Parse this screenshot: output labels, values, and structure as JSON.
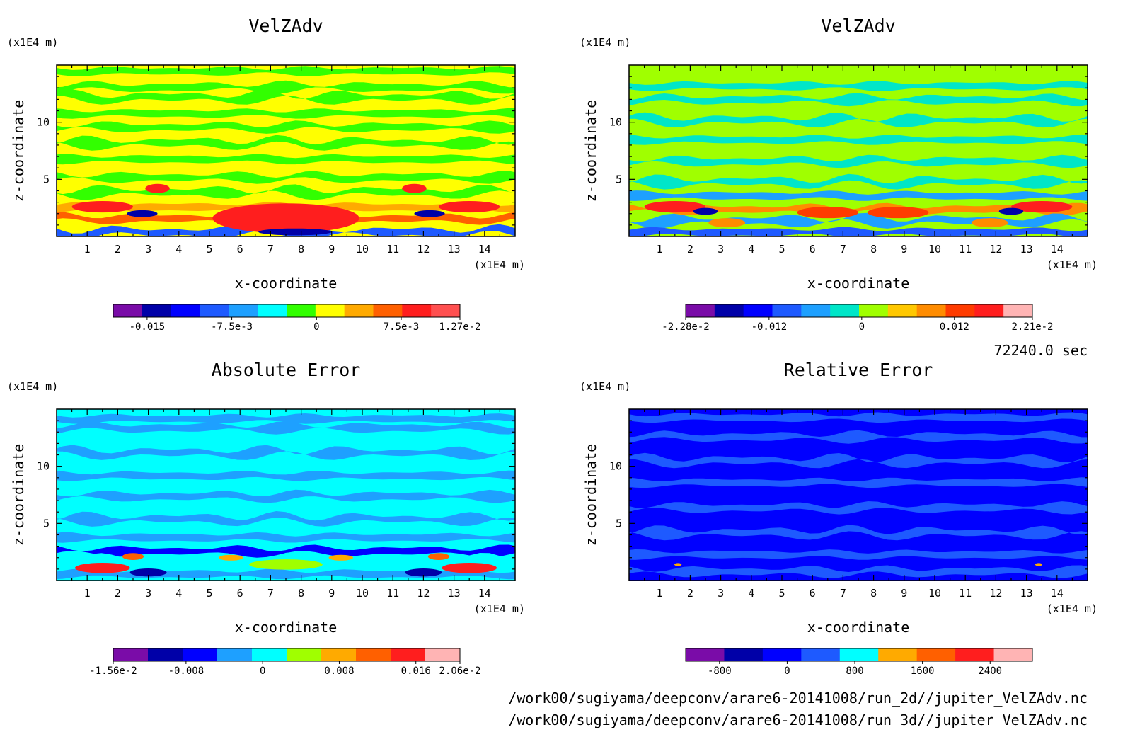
{
  "time_label": "72240.0 sec",
  "files": [
    "/work00/sugiyama/deepconv/arare6-20141008/run_2d//jupiter_VelZAdv.nc",
    "/work00/sugiyama/deepconv/arare6-20141008/run_3d//jupiter_VelZAdv.nc"
  ],
  "chart_data": [
    {
      "type": "heatmap",
      "title": "VelZAdv",
      "xlabel": "x-coordinate",
      "ylabel": "z-coordinate",
      "x_unit": "(x1E4 m)",
      "y_unit": "(x1E4 m)",
      "xlim": [
        0,
        15
      ],
      "ylim": [
        0,
        15
      ],
      "x_ticks": [
        "1",
        "2",
        "3",
        "4",
        "5",
        "6",
        "7",
        "8",
        "9",
        "10",
        "11",
        "12",
        "13",
        "14"
      ],
      "y_ticks": [
        "5",
        "10"
      ],
      "colorbar": {
        "colors": [
          "#7a0ca8",
          "#0000a8",
          "#0000ff",
          "#1e5aff",
          "#1ea0ff",
          "#00ffff",
          "#32ff00",
          "#ffff00",
          "#ffaa00",
          "#ff6000",
          "#ff1e1e",
          "#ff5050"
        ],
        "labels": [
          "-0.015",
          "-7.5e-3",
          "0",
          "7.5e-3",
          "1.27e-2"
        ],
        "range": [
          -0.018,
          0.0127
        ]
      },
      "background": "#ffff00",
      "bands": [
        {
          "z": 14.5,
          "color": "#32ff00"
        },
        {
          "z": 13.1,
          "color": "#32ff00"
        },
        {
          "z": 12.2,
          "color": "#32ff00"
        },
        {
          "z": 10.8,
          "color": "#32ff00"
        },
        {
          "z": 9.6,
          "color": "#32ff00"
        },
        {
          "z": 8.2,
          "color": "#32ff00"
        },
        {
          "z": 6.8,
          "color": "#32ff00"
        },
        {
          "z": 5.2,
          "color": "#32ff00"
        },
        {
          "z": 3.9,
          "color": "#32ff00"
        },
        {
          "z": 2.6,
          "color": "#ffaa00"
        },
        {
          "z": 1.6,
          "color": "#ff6000"
        },
        {
          "z": 0.4,
          "color": "#1e5aff"
        }
      ],
      "features": [
        {
          "x": 7.5,
          "z": 1.6,
          "rx": 2.4,
          "rz": 1.3,
          "color": "#ff1e1e"
        },
        {
          "x": 1.5,
          "z": 2.6,
          "rx": 1.0,
          "rz": 0.5,
          "color": "#ff1e1e"
        },
        {
          "x": 13.5,
          "z": 2.6,
          "rx": 1.0,
          "rz": 0.5,
          "color": "#ff1e1e"
        },
        {
          "x": 2.8,
          "z": 2.0,
          "rx": 0.5,
          "rz": 0.3,
          "color": "#0000a8"
        },
        {
          "x": 12.2,
          "z": 2.0,
          "rx": 0.5,
          "rz": 0.3,
          "color": "#0000a8"
        },
        {
          "x": 7.8,
          "z": 0.4,
          "rx": 1.2,
          "rz": 0.3,
          "color": "#0000a8"
        },
        {
          "x": 3.3,
          "z": 4.2,
          "rx": 0.4,
          "rz": 0.4,
          "color": "#ff1e1e"
        },
        {
          "x": 11.7,
          "z": 4.2,
          "rx": 0.4,
          "rz": 0.4,
          "color": "#ff1e1e"
        }
      ]
    },
    {
      "type": "heatmap",
      "title": "VelZAdv",
      "xlabel": "x-coordinate",
      "ylabel": "z-coordinate",
      "x_unit": "(x1E4 m)",
      "y_unit": "(x1E4 m)",
      "xlim": [
        0,
        15
      ],
      "ylim": [
        0,
        15
      ],
      "x_ticks": [
        "1",
        "2",
        "3",
        "4",
        "5",
        "6",
        "7",
        "8",
        "9",
        "10",
        "11",
        "12",
        "13",
        "14"
      ],
      "y_ticks": [
        "5",
        "10"
      ],
      "colorbar": {
        "colors": [
          "#7a0ca8",
          "#0000a8",
          "#0000ff",
          "#1e5aff",
          "#1ea0ff",
          "#00e6c8",
          "#a0ff00",
          "#ffc800",
          "#ff8c00",
          "#ff3c00",
          "#ff1e1e",
          "#ffb4b4"
        ],
        "labels": [
          "-2.28e-2",
          "-0.012",
          "0",
          "0.012",
          "2.21e-2"
        ],
        "range": [
          -0.0228,
          0.0221
        ]
      },
      "background": "#a0ff00",
      "bands": [
        {
          "z": 13.2,
          "color": "#00e6c8"
        },
        {
          "z": 12.0,
          "color": "#00e6c8"
        },
        {
          "z": 10.2,
          "color": "#00e6c8"
        },
        {
          "z": 8.5,
          "color": "#00e6c8"
        },
        {
          "z": 6.6,
          "color": "#00e6c8"
        },
        {
          "z": 4.8,
          "color": "#00e6c8"
        },
        {
          "z": 3.6,
          "color": "#1ea0ff"
        },
        {
          "z": 2.4,
          "color": "#ff8c00"
        },
        {
          "z": 1.4,
          "color": "#1ea0ff"
        },
        {
          "z": 0.4,
          "color": "#1e5aff"
        }
      ],
      "features": [
        {
          "x": 1.5,
          "z": 2.6,
          "rx": 1.0,
          "rz": 0.5,
          "color": "#ff1e1e"
        },
        {
          "x": 13.5,
          "z": 2.6,
          "rx": 1.0,
          "rz": 0.5,
          "color": "#ff1e1e"
        },
        {
          "x": 2.5,
          "z": 2.2,
          "rx": 0.4,
          "rz": 0.3,
          "color": "#0000a8"
        },
        {
          "x": 12.5,
          "z": 2.2,
          "rx": 0.4,
          "rz": 0.3,
          "color": "#0000a8"
        },
        {
          "x": 6.5,
          "z": 2.1,
          "rx": 1.0,
          "rz": 0.5,
          "color": "#ff3c00"
        },
        {
          "x": 8.8,
          "z": 2.1,
          "rx": 1.0,
          "rz": 0.5,
          "color": "#ff3c00"
        },
        {
          "x": 3.2,
          "z": 1.2,
          "rx": 0.6,
          "rz": 0.4,
          "color": "#ff8c00"
        },
        {
          "x": 11.8,
          "z": 1.2,
          "rx": 0.6,
          "rz": 0.4,
          "color": "#ff8c00"
        }
      ]
    },
    {
      "type": "heatmap",
      "title": "Absolute Error",
      "xlabel": "x-coordinate",
      "ylabel": "z-coordinate",
      "x_unit": "(x1E4 m)",
      "y_unit": "(x1E4 m)",
      "xlim": [
        0,
        15
      ],
      "ylim": [
        0,
        15
      ],
      "x_ticks": [
        "1",
        "2",
        "3",
        "4",
        "5",
        "6",
        "7",
        "8",
        "9",
        "10",
        "11",
        "12",
        "13",
        "14"
      ],
      "y_ticks": [
        "5",
        "10"
      ],
      "colorbar": {
        "colors": [
          "#7a0ca8",
          "#0000a8",
          "#0000ff",
          "#1ea0ff",
          "#00ffff",
          "#a0ff00",
          "#ffaa00",
          "#ff6000",
          "#ff1e1e",
          "#ffb4b4"
        ],
        "labels": [
          "-1.56e-2",
          "-0.008",
          "0",
          "0.008",
          "0.016",
          "2.06e-2"
        ],
        "range": [
          -0.0156,
          0.0206
        ]
      },
      "background": "#00ffff",
      "bands": [
        {
          "z": 14.2,
          "color": "#1ea0ff"
        },
        {
          "z": 13.4,
          "color": "#1ea0ff"
        },
        {
          "z": 11.2,
          "color": "#1ea0ff"
        },
        {
          "z": 9.2,
          "color": "#1ea0ff"
        },
        {
          "z": 7.4,
          "color": "#1ea0ff"
        },
        {
          "z": 5.4,
          "color": "#1ea0ff"
        },
        {
          "z": 3.8,
          "color": "#1ea0ff"
        },
        {
          "z": 2.6,
          "color": "#0000ff"
        },
        {
          "z": 1.8,
          "color": "#00ffff"
        },
        {
          "z": 0.6,
          "color": "#1ea0ff"
        }
      ],
      "features": [
        {
          "x": 1.5,
          "z": 1.1,
          "rx": 0.9,
          "rz": 0.45,
          "color": "#ff1e1e"
        },
        {
          "x": 13.5,
          "z": 1.1,
          "rx": 0.9,
          "rz": 0.45,
          "color": "#ff1e1e"
        },
        {
          "x": 3.0,
          "z": 0.7,
          "rx": 0.6,
          "rz": 0.35,
          "color": "#0000a8"
        },
        {
          "x": 12.0,
          "z": 0.7,
          "rx": 0.6,
          "rz": 0.35,
          "color": "#0000a8"
        },
        {
          "x": 7.5,
          "z": 1.4,
          "rx": 1.2,
          "rz": 0.45,
          "color": "#a0ff00"
        },
        {
          "x": 2.5,
          "z": 2.1,
          "rx": 0.35,
          "rz": 0.3,
          "color": "#ff6000"
        },
        {
          "x": 12.5,
          "z": 2.1,
          "rx": 0.35,
          "rz": 0.3,
          "color": "#ff6000"
        },
        {
          "x": 5.7,
          "z": 2.0,
          "rx": 0.4,
          "rz": 0.25,
          "color": "#ffaa00"
        },
        {
          "x": 9.3,
          "z": 2.0,
          "rx": 0.4,
          "rz": 0.25,
          "color": "#ffaa00"
        }
      ]
    },
    {
      "type": "heatmap",
      "title": "Relative Error",
      "xlabel": "x-coordinate",
      "ylabel": "z-coordinate",
      "x_unit": "(x1E4 m)",
      "y_unit": "(x1E4 m)",
      "xlim": [
        0,
        15
      ],
      "ylim": [
        0,
        15
      ],
      "x_ticks": [
        "1",
        "2",
        "3",
        "4",
        "5",
        "6",
        "7",
        "8",
        "9",
        "10",
        "11",
        "12",
        "13",
        "14"
      ],
      "y_ticks": [
        "5",
        "10"
      ],
      "colorbar": {
        "colors": [
          "#7a0ca8",
          "#0000a8",
          "#0000ff",
          "#1e5aff",
          "#00ffff",
          "#ffaa00",
          "#ff6000",
          "#ff1e1e",
          "#ffb4b4"
        ],
        "labels": [
          "-800",
          "0",
          "800",
          "1600",
          "2400"
        ],
        "range": [
          -1200,
          2900
        ]
      },
      "background": "#0000ff",
      "bands": [
        {
          "z": 14.3,
          "color": "#1e5aff"
        },
        {
          "z": 12.6,
          "color": "#1e5aff"
        },
        {
          "z": 10.5,
          "color": "#1e5aff"
        },
        {
          "z": 8.6,
          "color": "#1e5aff"
        },
        {
          "z": 6.4,
          "color": "#1e5aff"
        },
        {
          "z": 4.2,
          "color": "#1e5aff"
        },
        {
          "z": 2.3,
          "color": "#1e5aff"
        },
        {
          "z": 0.8,
          "color": "#1e5aff"
        }
      ],
      "features": [
        {
          "x": 1.6,
          "z": 1.4,
          "rx": 0.12,
          "rz": 0.08,
          "color": "#ffaa00"
        },
        {
          "x": 13.4,
          "z": 1.4,
          "rx": 0.12,
          "rz": 0.08,
          "color": "#ffaa00"
        }
      ]
    }
  ]
}
